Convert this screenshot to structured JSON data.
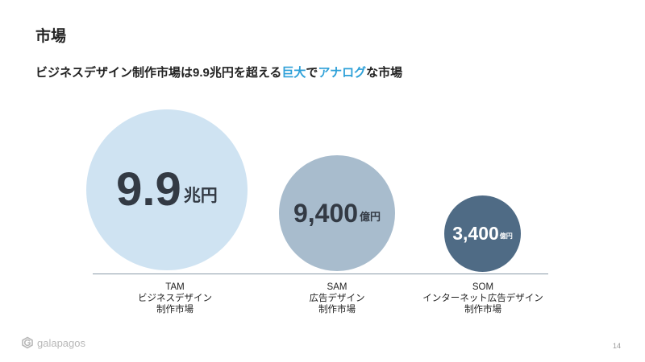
{
  "page": {
    "title": "市場",
    "subtitle_pre": "ビジネスデザイン制作市場は9.9兆円を超える",
    "subtitle_hl1": "巨大",
    "subtitle_mid": "で",
    "subtitle_hl2": "アナログ",
    "subtitle_post": "な市場"
  },
  "markets": {
    "tam": {
      "value": "9.9",
      "unit": "兆円",
      "name": "TAM",
      "line1": "ビジネスデザイン",
      "line2": "制作市場"
    },
    "sam": {
      "value": "9,400",
      "unit": "億円",
      "name": "SAM",
      "line1": "広告デザイン",
      "line2": "制作市場"
    },
    "som": {
      "value": "3,400",
      "unit": "億円",
      "name": "SOM",
      "line1": "インターネット広告デザイン",
      "line2": "制作市場"
    }
  },
  "footer": {
    "logo_text": "galapagos",
    "page_number": "14"
  },
  "colors": {
    "accent": "#2ea0d8",
    "tam_fill": "#cfe3f2",
    "sam_fill": "#a8bccd",
    "som_fill": "#4f6b85"
  }
}
